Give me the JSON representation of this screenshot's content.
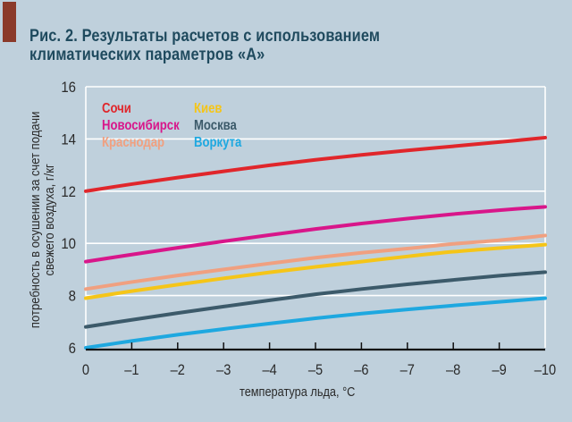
{
  "figure": {
    "title_line1": "Рис. 2. Результаты расчетов с использованием",
    "title_line2": "климатических параметров «А»",
    "accent_color": "#8b3a2a",
    "background_color": "#bfd0dc"
  },
  "chart_data": {
    "type": "line",
    "title": "Рис. 2. Результаты расчетов с использованием климатических параметров «А»",
    "xlabel": "температура льда, °С",
    "ylabel_line1": "потребность в осушении за счет подачи",
    "ylabel_line2": "свежего воздуха, г/кг",
    "x": [
      0,
      -1,
      -2,
      -3,
      -4,
      -5,
      -6,
      -7,
      -8,
      -9,
      -10
    ],
    "x_tick_labels": [
      "0",
      "–1",
      "–2",
      "–3",
      "–4",
      "–5",
      "–6",
      "–7",
      "–8",
      "–9",
      "–10"
    ],
    "y_ticks": [
      6,
      8,
      10,
      12,
      14,
      16
    ],
    "y_tick_labels": [
      "6",
      "8",
      "10",
      "12",
      "14",
      "16"
    ],
    "xlim": [
      0,
      -10
    ],
    "ylim": [
      6,
      16
    ],
    "grid": "horizontal",
    "legend_position": "upper-left",
    "series": [
      {
        "name": "Сочи",
        "color": "#e0262b",
        "values": [
          12.0,
          12.27,
          12.52,
          12.76,
          12.99,
          13.2,
          13.39,
          13.56,
          13.72,
          13.88,
          14.05
        ]
      },
      {
        "name": "Новосибирск",
        "color": "#d8168a",
        "values": [
          9.3,
          9.57,
          9.83,
          10.08,
          10.32,
          10.55,
          10.76,
          10.95,
          11.12,
          11.27,
          11.4
        ]
      },
      {
        "name": "Краснодар",
        "color": "#f0a080",
        "values": [
          8.25,
          8.52,
          8.77,
          9.0,
          9.23,
          9.45,
          9.64,
          9.8,
          9.98,
          10.12,
          10.3
        ]
      },
      {
        "name": "Киев",
        "color": "#f5c518",
        "values": [
          7.9,
          8.17,
          8.42,
          8.66,
          8.89,
          9.1,
          9.3,
          9.5,
          9.68,
          9.82,
          9.95
        ]
      },
      {
        "name": "Москва",
        "color": "#3c5a6a",
        "values": [
          6.8,
          7.07,
          7.33,
          7.58,
          7.82,
          8.05,
          8.25,
          8.43,
          8.6,
          8.76,
          8.9
        ]
      },
      {
        "name": "Воркута",
        "color": "#1ea8e0",
        "values": [
          6.0,
          6.26,
          6.5,
          6.72,
          6.93,
          7.13,
          7.31,
          7.47,
          7.62,
          7.76,
          7.9
        ]
      }
    ]
  }
}
